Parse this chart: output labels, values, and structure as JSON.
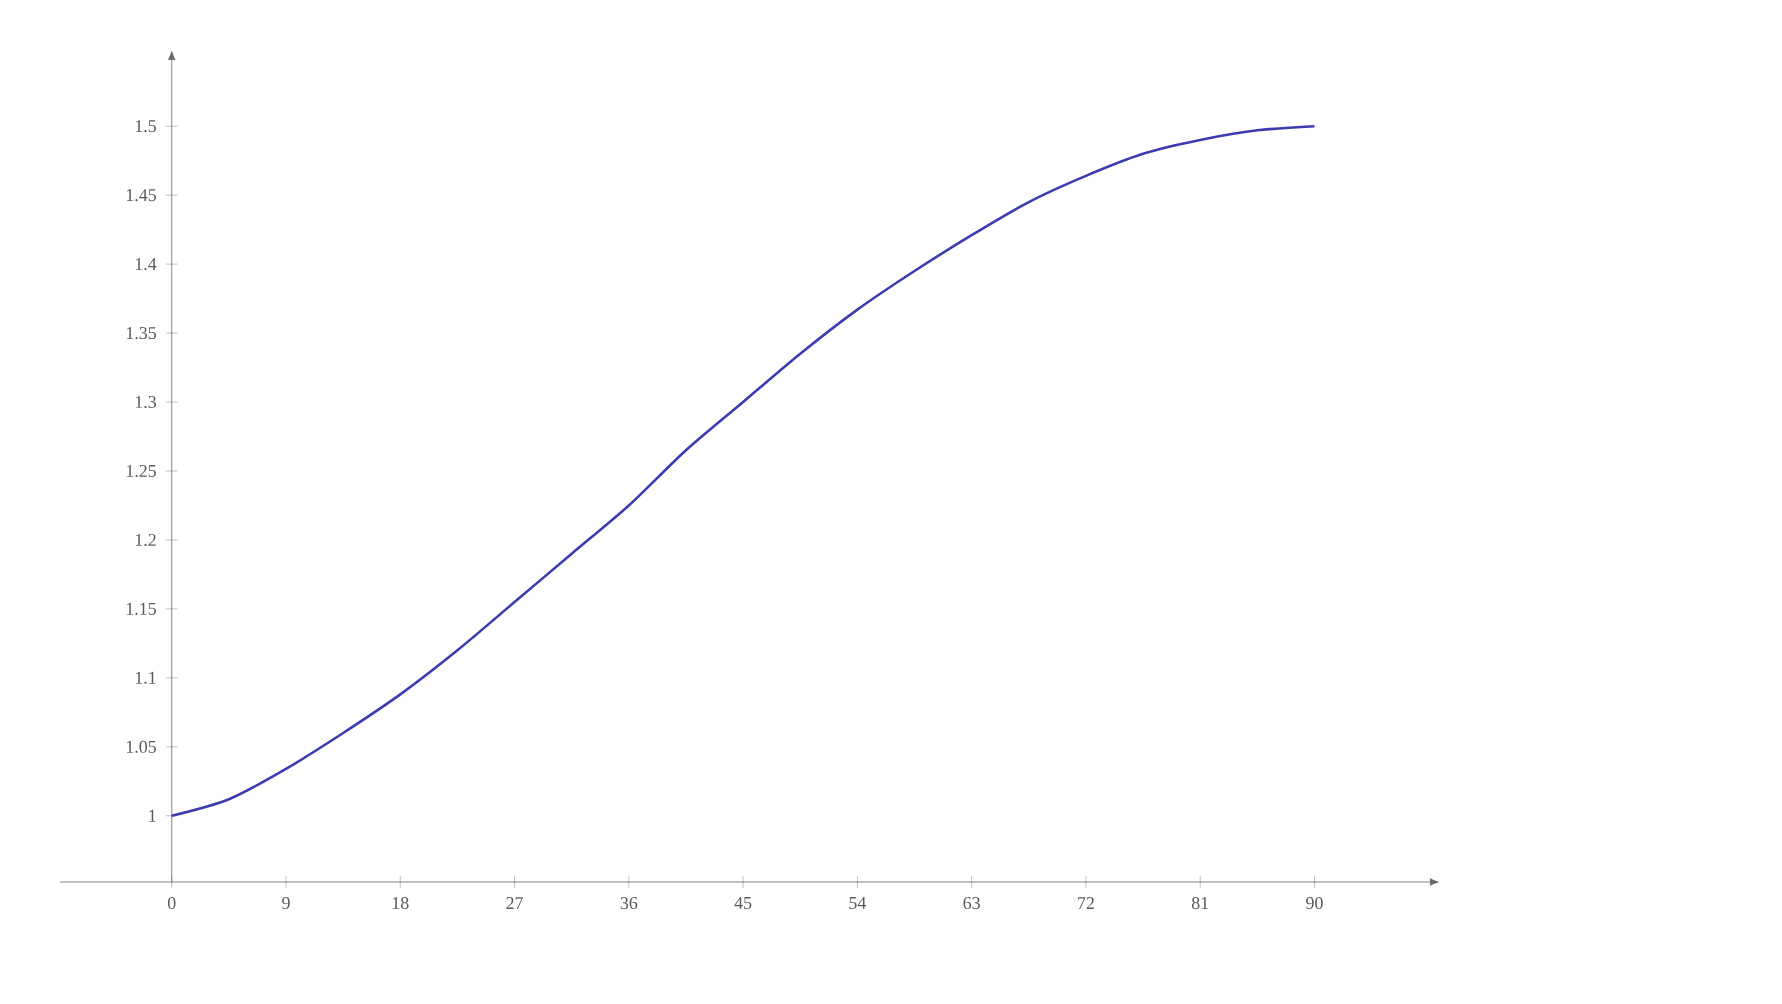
{
  "chart_data": {
    "type": "line",
    "x": [
      0,
      4.5,
      9,
      13.5,
      18,
      22.5,
      27,
      31.5,
      36,
      40.5,
      45,
      49.5,
      54,
      58.5,
      63,
      67.5,
      72,
      76.5,
      81,
      85.5,
      90
    ],
    "series": [
      {
        "color": "#3c3cb0",
        "values": [
          1.0,
          1.012,
          1.034,
          1.06,
          1.088,
          1.12,
          1.155,
          1.19,
          1.225,
          1.265,
          1.3,
          1.335,
          1.367,
          1.395,
          1.421,
          1.445,
          1.464,
          1.48,
          1.49,
          1.497,
          1.5
        ]
      }
    ],
    "xlim": [
      -8.8,
      99.1
    ],
    "ylim": [
      0.952,
      1.548
    ],
    "xticks": [
      0,
      9,
      18,
      27,
      36,
      45,
      54,
      63,
      72,
      81,
      90
    ],
    "yticks": [
      1,
      1.05,
      1.1,
      1.15,
      1.2,
      1.25,
      1.3,
      1.35,
      1.4,
      1.45,
      1.5
    ],
    "grid": false,
    "marker": "none",
    "line_style": "solid"
  }
}
